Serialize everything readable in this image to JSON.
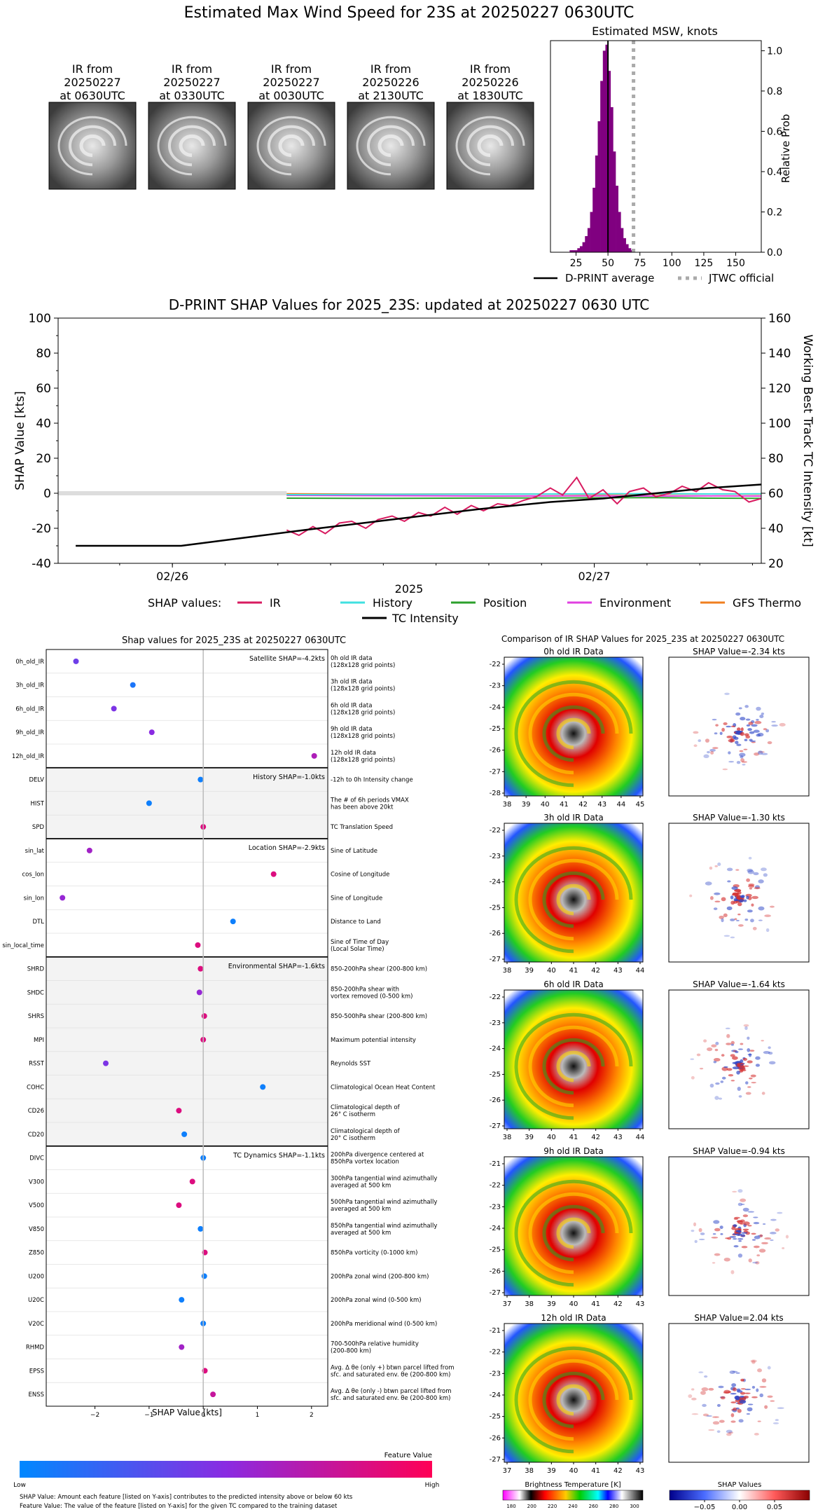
{
  "page": {
    "title": "Estimated Max Wind Speed for 23S at 20250227 0630UTC"
  },
  "ir_thumbnails": [
    {
      "lines": [
        "IR from",
        "20250227",
        "at 0630UTC"
      ]
    },
    {
      "lines": [
        "IR from",
        "20250227",
        "at 0330UTC"
      ]
    },
    {
      "lines": [
        "IR from",
        "20250227",
        "at 0030UTC"
      ]
    },
    {
      "lines": [
        "IR from",
        "20250226",
        "at 2130UTC"
      ]
    },
    {
      "lines": [
        "IR from",
        "20250226",
        "at 1830UTC"
      ]
    }
  ],
  "colors": {
    "ir": "#d81b60",
    "history": "#40e0e0",
    "position": "#2ca02c",
    "environment": "#e040e0",
    "gfs_thermo": "#f07f20",
    "intensity": "#000000",
    "hist_bar": "#800080",
    "jtwc": "#aaaaaa",
    "feature_low": "#0088ff",
    "feature_high": "#ff0055"
  },
  "chart_data": [
    {
      "type": "bar",
      "title": "Estimated MSW, knots",
      "ylabel": "Relative Prob",
      "xlim": [
        5,
        170
      ],
      "ylim": [
        0,
        1.05
      ],
      "xticks": [
        25,
        50,
        75,
        100,
        125,
        150
      ],
      "yticks": [
        0.0,
        0.2,
        0.4,
        0.6,
        0.8,
        1.0
      ],
      "bin_width": 2,
      "bins_x": [
        21,
        23,
        25,
        27,
        29,
        31,
        33,
        35,
        37,
        39,
        41,
        43,
        45,
        47,
        49,
        51,
        53,
        55,
        57,
        59,
        61,
        63,
        65,
        67,
        69
      ],
      "values": [
        0.01,
        0.01,
        0.01,
        0.02,
        0.03,
        0.05,
        0.08,
        0.12,
        0.2,
        0.32,
        0.48,
        0.65,
        0.85,
        1.0,
        1.03,
        0.9,
        0.72,
        0.5,
        0.33,
        0.2,
        0.12,
        0.07,
        0.04,
        0.02,
        0.01
      ],
      "d_print_average": 50,
      "jtwc_official": 70,
      "legend": [
        "D-PRINT average",
        "JTWC official"
      ]
    },
    {
      "type": "line",
      "title": "D-PRINT SHAP Values for 2025_23S: updated at 20250227 0630 UTC",
      "xlabel": "2025",
      "ylabel": "SHAP Value [kts]",
      "y2label": "Working Best Track TC Intensity [kt]",
      "xlim": [
        -31,
        9
      ],
      "ylim": [
        -40,
        100
      ],
      "y2lim": [
        20,
        160
      ],
      "yticks": [
        -40,
        -20,
        0,
        20,
        40,
        60,
        80,
        100
      ],
      "y2ticks": [
        20,
        40,
        60,
        80,
        100,
        120,
        140,
        160
      ],
      "xtick_labels": [
        "02/26",
        "02/27"
      ],
      "xtick_values": [
        -24.5,
        -0.5
      ],
      "legend_title": "SHAP values:",
      "series": [
        {
          "name": "IR",
          "color_key": "ir",
          "x": [
            -18,
            -17.3,
            -16.5,
            -15.8,
            -15,
            -14.3,
            -13.5,
            -12.8,
            -12,
            -11.3,
            -10.5,
            -9.8,
            -9,
            -8.3,
            -7.5,
            -6.8,
            -6,
            -5.3,
            -4.5,
            -3.8,
            -3,
            -2.3,
            -1.5,
            -0.8,
            0,
            0.8,
            1.5,
            2.3,
            3,
            3.8,
            4.5,
            5.3,
            6,
            6.8,
            7.5,
            8.3,
            9
          ],
          "y": [
            -21,
            -24,
            -19,
            -23,
            -17,
            -16,
            -20,
            -15,
            -13,
            -16,
            -11,
            -13,
            -8,
            -12,
            -7,
            -10,
            -6,
            -7,
            -4,
            -2,
            3,
            -1,
            9,
            -3,
            2,
            -6,
            1,
            3,
            -2,
            0,
            4,
            1,
            6,
            2,
            1,
            -5,
            -3
          ]
        },
        {
          "name": "History",
          "color_key": "history",
          "x": [
            -18,
            -12,
            -6,
            0,
            3,
            6,
            9
          ],
          "y": [
            -0.8,
            -0.6,
            -0.5,
            -0.3,
            -0.2,
            -0.4,
            -0.3
          ]
        },
        {
          "name": "Position",
          "color_key": "position",
          "x": [
            -18,
            -12,
            -6,
            0,
            3,
            6,
            9
          ],
          "y": [
            -2.8,
            -2.9,
            -2.7,
            -2.6,
            -2.5,
            -2.8,
            -2.9
          ]
        },
        {
          "name": "Environment",
          "color_key": "environment",
          "x": [
            -18,
            -12,
            -6,
            0,
            3,
            6,
            9
          ],
          "y": [
            -1.2,
            -1.4,
            -1.6,
            -1.5,
            -1.6,
            -1.5,
            -1.6
          ]
        },
        {
          "name": "GFS Thermo",
          "color_key": "gfs_thermo",
          "x": [
            -18,
            -12,
            -6,
            0,
            3,
            6,
            9
          ],
          "y": [
            -0.3,
            -0.5,
            -0.4,
            -0.6,
            -0.5,
            -0.4,
            -0.5
          ]
        }
      ],
      "intensity": {
        "name": "TC Intensity",
        "color_key": "intensity",
        "x": [
          -30,
          -24,
          -17,
          -12,
          -7,
          -3,
          0,
          3,
          6,
          9
        ],
        "y": [
          30,
          30,
          39,
          45,
          51,
          55,
          57,
          60,
          63,
          65
        ]
      }
    },
    {
      "type": "scatter",
      "title": "Shap values for 2025_23S at 20250227 0630UTC",
      "xlabel": "SHAP Value [kts]",
      "xlim": [
        -2.9,
        2.3
      ],
      "xticks": [
        -2,
        -1,
        0,
        1,
        2
      ],
      "colorbar": {
        "title": "Feature Value",
        "low": "Low",
        "high": "High"
      },
      "groups": [
        {
          "label": "Satellite SHAP=-4.2kts",
          "shaded": false,
          "features": [
            {
              "name": "0h_old_IR",
              "desc": [
                "0h old IR data",
                "(128x128 grid points)"
              ],
              "shap": -2.35,
              "fv": 0.4
            },
            {
              "name": "3h_old_IR",
              "desc": [
                "3h old IR data",
                "(128x128 grid points)"
              ],
              "shap": -1.3,
              "fv": 0.1
            },
            {
              "name": "6h_old_IR",
              "desc": [
                "6h old IR data",
                "(128x128 grid points)"
              ],
              "shap": -1.65,
              "fv": 0.45
            },
            {
              "name": "9h_old_IR",
              "desc": [
                "9h old IR data",
                "(128x128 grid points)"
              ],
              "shap": -0.95,
              "fv": 0.5
            },
            {
              "name": "12h_old_IR",
              "desc": [
                "12h old IR data",
                "(128x128 grid points)"
              ],
              "shap": 2.05,
              "fv": 0.65
            }
          ]
        },
        {
          "label": "History SHAP=-1.0kts",
          "shaded": true,
          "features": [
            {
              "name": "DELV",
              "desc": [
                "-12h to 0h Intensity change"
              ],
              "shap": -0.05,
              "fv": 0.05
            },
            {
              "name": "HIST",
              "desc": [
                "The # of 6h periods VMAX",
                "has been above 20kt"
              ],
              "shap": -1.0,
              "fv": 0.05
            },
            {
              "name": "SPD",
              "desc": [
                "TC Translation Speed"
              ],
              "shap": 0.0,
              "fv": 0.85
            }
          ]
        },
        {
          "label": "Location SHAP=-2.9kts",
          "shaded": false,
          "features": [
            {
              "name": "sin_lat",
              "desc": [
                "Sine of Latitude"
              ],
              "shap": -2.1,
              "fv": 0.6
            },
            {
              "name": "cos_lon",
              "desc": [
                "Cosine of Longitude"
              ],
              "shap": 1.3,
              "fv": 0.85
            },
            {
              "name": "sin_lon",
              "desc": [
                "Sine of Longitude"
              ],
              "shap": -2.6,
              "fv": 0.55
            },
            {
              "name": "DTL",
              "desc": [
                "Distance to Land"
              ],
              "shap": 0.55,
              "fv": 0.05
            },
            {
              "name": "sin_local_time",
              "desc": [
                "Sine of Time of Day",
                "(Local Solar Time)"
              ],
              "shap": -0.1,
              "fv": 0.85
            }
          ]
        },
        {
          "label": "Environmental SHAP=-1.6kts",
          "shaded": true,
          "features": [
            {
              "name": "SHRD",
              "desc": [
                "850-200hPa shear (200-800 km)"
              ],
              "shap": -0.05,
              "fv": 0.85
            },
            {
              "name": "SHDC",
              "desc": [
                "850-200hPa shear with",
                "vortex removed (0-500 km)"
              ],
              "shap": -0.07,
              "fv": 0.55
            },
            {
              "name": "SHRS",
              "desc": [
                "850-500hPa shear (200-800 km)"
              ],
              "shap": 0.02,
              "fv": 0.85
            },
            {
              "name": "MPI",
              "desc": [
                "Maximum potential intensity"
              ],
              "shap": 0.0,
              "fv": 0.85
            },
            {
              "name": "RSST",
              "desc": [
                "Reynolds SST"
              ],
              "shap": -1.8,
              "fv": 0.45
            },
            {
              "name": "COHC",
              "desc": [
                "Climatological Ocean Heat Content"
              ],
              "shap": 1.1,
              "fv": 0.05
            },
            {
              "name": "CD26",
              "desc": [
                "Climatological depth of",
                "26° C isotherm"
              ],
              "shap": -0.45,
              "fv": 0.85
            },
            {
              "name": "CD20",
              "desc": [
                "Climatological depth of",
                "20° C isotherm"
              ],
              "shap": -0.35,
              "fv": 0.05
            }
          ]
        },
        {
          "label": "TC Dynamics SHAP=-1.1kts",
          "shaded": false,
          "features": [
            {
              "name": "DIVC",
              "desc": [
                "200hPa divergence centered at",
                "850hPa vortex location"
              ],
              "shap": 0.0,
              "fv": 0.05
            },
            {
              "name": "V300",
              "desc": [
                "300hPa tangential wind azimuthally",
                "averaged at 500 km"
              ],
              "shap": -0.2,
              "fv": 0.85
            },
            {
              "name": "V500",
              "desc": [
                "500hPa tangential wind azimuthally",
                "averaged at 500 km"
              ],
              "shap": -0.45,
              "fv": 0.85
            },
            {
              "name": "V850",
              "desc": [
                "850hPa tangential wind azimuthally",
                "averaged at 500 km"
              ],
              "shap": -0.05,
              "fv": 0.05
            },
            {
              "name": "Z850",
              "desc": [
                "850hPa vorticity (0-1000 km)"
              ],
              "shap": 0.03,
              "fv": 0.85
            },
            {
              "name": "U200",
              "desc": [
                "200hPa zonal wind (200-800 km)"
              ],
              "shap": 0.02,
              "fv": 0.05
            },
            {
              "name": "U20C",
              "desc": [
                "200hPa zonal wind (0-500 km)"
              ],
              "shap": -0.4,
              "fv": 0.05
            },
            {
              "name": "V20C",
              "desc": [
                "200hPa meridional wind (0-500 km)"
              ],
              "shap": 0.0,
              "fv": 0.05
            },
            {
              "name": "RHMD",
              "desc": [
                "700-500hPa relative humidity",
                "(200-800 km)"
              ],
              "shap": -0.4,
              "fv": 0.6
            },
            {
              "name": "EPSS",
              "desc": [
                "Avg. Δ θe (only +) btwn parcel lifted from",
                "sfc. and saturated env. θe (200-800 km)"
              ],
              "shap": 0.03,
              "fv": 0.85
            },
            {
              "name": "ENSS",
              "desc": [
                "Avg. Δ θe (only -) btwn parcel lifted from",
                "sfc. and saturated env. θe (200-800 km)"
              ],
              "shap": 0.18,
              "fv": 0.75
            }
          ]
        }
      ]
    },
    {
      "type": "heatmap",
      "title": "Comparison of IR SHAP Values for 2025_23S at 20250227 0630UTC",
      "panels": [
        {
          "ir_title": "0h old IR Data",
          "shap_title": "SHAP Value=-2.34 kts",
          "xticks": [
            "38",
            "39",
            "40",
            "41",
            "42",
            "43",
            "44",
            "45"
          ],
          "yticks": [
            "-22",
            "-23",
            "-24",
            "-25",
            "-26",
            "-27",
            "-28"
          ]
        },
        {
          "ir_title": "3h old IR Data",
          "shap_title": "SHAP Value=-1.30 kts",
          "xticks": [
            "38",
            "39",
            "40",
            "41",
            "42",
            "43",
            "44"
          ],
          "yticks": [
            "-22",
            "-23",
            "-24",
            "-25",
            "-26",
            "-27"
          ]
        },
        {
          "ir_title": "6h old IR Data",
          "shap_title": "SHAP Value=-1.64 kts",
          "xticks": [
            "38",
            "39",
            "40",
            "41",
            "42",
            "43",
            "44"
          ],
          "yticks": [
            "-22",
            "-23",
            "-24",
            "-25",
            "-26",
            "-27"
          ]
        },
        {
          "ir_title": "9h old IR Data",
          "shap_title": "SHAP Value=-0.94 kts",
          "xticks": [
            "37",
            "38",
            "39",
            "40",
            "41",
            "42",
            "43"
          ],
          "yticks": [
            "-21",
            "-22",
            "-23",
            "-24",
            "-25",
            "-26",
            "-27"
          ]
        },
        {
          "ir_title": "12h old IR Data",
          "shap_title": "SHAP Value=2.04 kts",
          "xticks": [
            "37",
            "38",
            "39",
            "40",
            "41",
            "42",
            "43"
          ],
          "yticks": [
            "-21",
            "-22",
            "-23",
            "-24",
            "-25",
            "-26",
            "-27"
          ]
        }
      ],
      "bt_colorbar": {
        "title": "Brightness Temperature [K]",
        "ticks": [
          "180",
          "200",
          "220",
          "240",
          "260",
          "280",
          "300"
        ]
      },
      "shap_colorbar": {
        "title": "SHAP Values",
        "ticks": [
          "−0.05",
          "0.00",
          "0.05"
        ]
      }
    }
  ],
  "footnotes": [
    "SHAP Value: Amount each feature [listed on Y-axis] contributes to the predicted intensity above or below 60 kts",
    "Feature Value: The value of the feature [listed on Y-axis] for the given TC compared to the training dataset"
  ]
}
